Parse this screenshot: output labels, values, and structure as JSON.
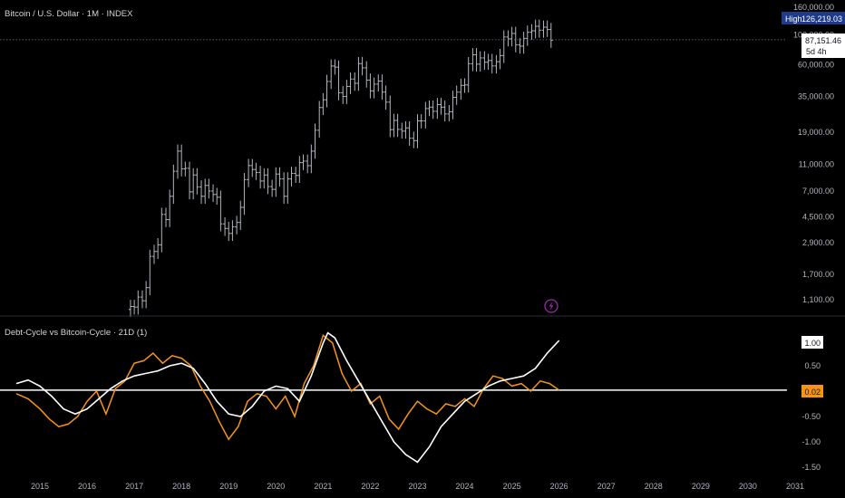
{
  "main_title": "Bitcoin / U.S. Dollar · 1M · INDEX",
  "indicator_title": "Debt-Cycle vs Bitcoin-Cycle · 21D (1)",
  "high_label": "High",
  "high_value": "126,219.03",
  "price_label": "87,151.46",
  "countdown": "5d 4h",
  "osc_value_white": "1.00",
  "osc_value_orange": "0.02",
  "flash_icon": "lightning-bolt-icon",
  "colors": {
    "background": "#000000",
    "candle": "#b2b5be",
    "white_line": "#ffffff",
    "orange_line": "#f7931a",
    "zero_line": "#ffffff",
    "badge_blue": "#1e3a8a",
    "badge_orange": "#f7931a",
    "purple": "#9c27b0"
  },
  "chart_data": [
    {
      "type": "candlestick",
      "title": "Bitcoin / U.S. Dollar · 1M · INDEX",
      "y_scale": "log",
      "y_ticks": [
        "160,000.00",
        "100,000.00",
        "60,000.00",
        "35,000.00",
        "19,000.00",
        "11,000.00",
        "7,000.00",
        "4,500.00",
        "2,900.00",
        "1,700.00",
        "1,100.00"
      ],
      "y_tick_values": [
        160000,
        100000,
        60000,
        35000,
        19000,
        11000,
        7000,
        4500,
        2900,
        1700,
        1100
      ],
      "x_ticks": [
        "2015",
        "2016",
        "2017",
        "2018",
        "2019",
        "2020",
        "2021",
        "2022",
        "2023",
        "2024",
        "2025",
        "2026",
        "2027",
        "2028",
        "2029",
        "2030",
        "2031"
      ],
      "x_tick_values": [
        2015,
        2016,
        2017,
        2018,
        2019,
        2020,
        2021,
        2022,
        2023,
        2024,
        2025,
        2026,
        2027,
        2028,
        2029,
        2030,
        2031
      ],
      "series": [
        {
          "name": "BTCUSD",
          "points": [
            [
              2016.92,
              980
            ],
            [
              2017.0,
              970
            ],
            [
              2017.08,
              1150
            ],
            [
              2017.17,
              1080
            ],
            [
              2017.25,
              1350
            ],
            [
              2017.33,
              2300
            ],
            [
              2017.42,
              2500
            ],
            [
              2017.5,
              2800
            ],
            [
              2017.58,
              4700
            ],
            [
              2017.67,
              4300
            ],
            [
              2017.75,
              6400
            ],
            [
              2017.83,
              9800
            ],
            [
              2017.92,
              13800
            ],
            [
              2018.0,
              10200
            ],
            [
              2018.08,
              10300
            ],
            [
              2018.17,
              6900
            ],
            [
              2018.25,
              9200
            ],
            [
              2018.33,
              7500
            ],
            [
              2018.42,
              6400
            ],
            [
              2018.5,
              7700
            ],
            [
              2018.58,
              7000
            ],
            [
              2018.67,
              6600
            ],
            [
              2018.75,
              6300
            ],
            [
              2018.83,
              4000
            ],
            [
              2018.92,
              3700
            ],
            [
              2019.0,
              3400
            ],
            [
              2019.08,
              3800
            ],
            [
              2019.17,
              4100
            ],
            [
              2019.25,
              5300
            ],
            [
              2019.33,
              8500
            ],
            [
              2019.42,
              10800
            ],
            [
              2019.5,
              10100
            ],
            [
              2019.58,
              9600
            ],
            [
              2019.67,
              8300
            ],
            [
              2019.75,
              9200
            ],
            [
              2019.83,
              7550
            ],
            [
              2019.92,
              7200
            ],
            [
              2020.0,
              9350
            ],
            [
              2020.08,
              8600
            ],
            [
              2020.17,
              6400
            ],
            [
              2020.25,
              8600
            ],
            [
              2020.33,
              9450
            ],
            [
              2020.42,
              9130
            ],
            [
              2020.5,
              11350
            ],
            [
              2020.58,
              11650
            ],
            [
              2020.67,
              10780
            ],
            [
              2020.75,
              13800
            ],
            [
              2020.83,
              19700
            ],
            [
              2020.92,
              29000
            ],
            [
              2021.0,
              33100
            ],
            [
              2021.08,
              45200
            ],
            [
              2021.17,
              58800
            ],
            [
              2021.25,
              57700
            ],
            [
              2021.33,
              37300
            ],
            [
              2021.42,
              35000
            ],
            [
              2021.5,
              41500
            ],
            [
              2021.58,
              47100
            ],
            [
              2021.67,
              43800
            ],
            [
              2021.75,
              61300
            ],
            [
              2021.83,
              57000
            ],
            [
              2021.92,
              46300
            ],
            [
              2022.0,
              38500
            ],
            [
              2022.08,
              43200
            ],
            [
              2022.17,
              45500
            ],
            [
              2022.25,
              37700
            ],
            [
              2022.33,
              31800
            ],
            [
              2022.42,
              19900
            ],
            [
              2022.5,
              23300
            ],
            [
              2022.58,
              20000
            ],
            [
              2022.67,
              19400
            ],
            [
              2022.75,
              20500
            ],
            [
              2022.83,
              17200
            ],
            [
              2022.92,
              16500
            ],
            [
              2023.0,
              23100
            ],
            [
              2023.08,
              23100
            ],
            [
              2023.17,
              28500
            ],
            [
              2023.25,
              29200
            ],
            [
              2023.33,
              27200
            ],
            [
              2023.42,
              30500
            ],
            [
              2023.5,
              29200
            ],
            [
              2023.58,
              26000
            ],
            [
              2023.67,
              27000
            ],
            [
              2023.75,
              34500
            ],
            [
              2023.83,
              37700
            ],
            [
              2023.92,
              42300
            ],
            [
              2024.0,
              42600
            ],
            [
              2024.08,
              61200
            ],
            [
              2024.17,
              71300
            ],
            [
              2024.25,
              60700
            ],
            [
              2024.33,
              67500
            ],
            [
              2024.42,
              62700
            ],
            [
              2024.5,
              64600
            ],
            [
              2024.58,
              58900
            ],
            [
              2024.67,
              63300
            ],
            [
              2024.75,
              70300
            ],
            [
              2024.83,
              96400
            ],
            [
              2024.92,
              93400
            ],
            [
              2025.0,
              102400
            ],
            [
              2025.08,
              84300
            ],
            [
              2025.17,
              82500
            ],
            [
              2025.25,
              94200
            ],
            [
              2025.33,
              104600
            ],
            [
              2025.42,
              107100
            ],
            [
              2025.5,
              115700
            ],
            [
              2025.58,
              108200
            ],
            [
              2025.67,
              114000
            ],
            [
              2025.75,
              109500
            ],
            [
              2025.83,
              91000
            ]
          ]
        }
      ],
      "high": 126219.03,
      "last": 87151.46
    },
    {
      "type": "line",
      "title": "Debt-Cycle vs Bitcoin-Cycle · 21D (1)",
      "y_ticks": [
        "0.50",
        "-0.50",
        "-1.00",
        "-1.50"
      ],
      "y_tick_values": [
        0.5,
        -0.5,
        -1.0,
        -1.5
      ],
      "y_range": [
        -1.6,
        1.3
      ],
      "series": [
        {
          "name": "white",
          "color": "#ffffff",
          "x": [
            2014.5,
            2014.75,
            2015.0,
            2015.25,
            2015.5,
            2015.75,
            2016.0,
            2016.25,
            2016.5,
            2016.75,
            2017.0,
            2017.25,
            2017.5,
            2017.75,
            2018.0,
            2018.25,
            2018.5,
            2018.75,
            2019.0,
            2019.25,
            2019.5,
            2019.75,
            2020.0,
            2020.25,
            2020.5,
            2020.75,
            2021.0,
            2021.1,
            2021.25,
            2021.5,
            2021.75,
            2022.0,
            2022.25,
            2022.5,
            2022.75,
            2023.0,
            2023.25,
            2023.5,
            2023.75,
            2024.0,
            2024.25,
            2024.5,
            2024.75,
            2025.0,
            2025.25,
            2025.5,
            2025.75,
            2026.0
          ],
          "y": [
            0.15,
            0.22,
            0.1,
            -0.1,
            -0.35,
            -0.45,
            -0.35,
            -0.15,
            0.05,
            0.2,
            0.3,
            0.35,
            0.4,
            0.5,
            0.55,
            0.45,
            0.15,
            -0.2,
            -0.45,
            -0.5,
            -0.3,
            0.0,
            0.1,
            0.05,
            -0.2,
            0.3,
            0.95,
            1.15,
            1.05,
            0.6,
            0.2,
            -0.2,
            -0.6,
            -1.0,
            -1.25,
            -1.4,
            -1.1,
            -0.7,
            -0.45,
            -0.2,
            -0.05,
            0.1,
            0.2,
            0.25,
            0.3,
            0.45,
            0.75,
            1.0
          ]
        },
        {
          "name": "orange",
          "color": "#f7931a",
          "x": [
            2014.5,
            2014.75,
            2015.0,
            2015.2,
            2015.4,
            2015.6,
            2015.8,
            2016.0,
            2016.2,
            2016.4,
            2016.6,
            2016.8,
            2017.0,
            2017.2,
            2017.4,
            2017.6,
            2017.8,
            2018.0,
            2018.2,
            2018.4,
            2018.6,
            2018.8,
            2019.0,
            2019.2,
            2019.4,
            2019.6,
            2019.8,
            2020.0,
            2020.2,
            2020.4,
            2020.6,
            2020.8,
            2021.0,
            2021.2,
            2021.4,
            2021.6,
            2021.8,
            2022.0,
            2022.2,
            2022.4,
            2022.6,
            2022.8,
            2023.0,
            2023.2,
            2023.4,
            2023.6,
            2023.8,
            2024.0,
            2024.2,
            2024.4,
            2024.6,
            2024.8,
            2025.0,
            2025.2,
            2025.4,
            2025.6,
            2025.8,
            2026.0
          ],
          "y": [
            -0.05,
            -0.15,
            -0.35,
            -0.55,
            -0.7,
            -0.65,
            -0.5,
            -0.2,
            0.0,
            -0.45,
            0.05,
            0.2,
            0.55,
            0.6,
            0.75,
            0.55,
            0.7,
            0.65,
            0.5,
            0.1,
            -0.2,
            -0.6,
            -0.95,
            -0.7,
            -0.2,
            -0.05,
            -0.1,
            -0.35,
            -0.1,
            -0.5,
            0.15,
            0.5,
            1.1,
            0.95,
            0.35,
            0.0,
            0.15,
            -0.25,
            -0.1,
            -0.55,
            -0.75,
            -0.45,
            -0.2,
            -0.35,
            -0.45,
            -0.25,
            -0.3,
            -0.15,
            -0.3,
            0.05,
            0.3,
            0.25,
            0.1,
            0.15,
            0.0,
            0.2,
            0.15,
            0.02
          ]
        }
      ],
      "zero_line": 0.02
    }
  ]
}
